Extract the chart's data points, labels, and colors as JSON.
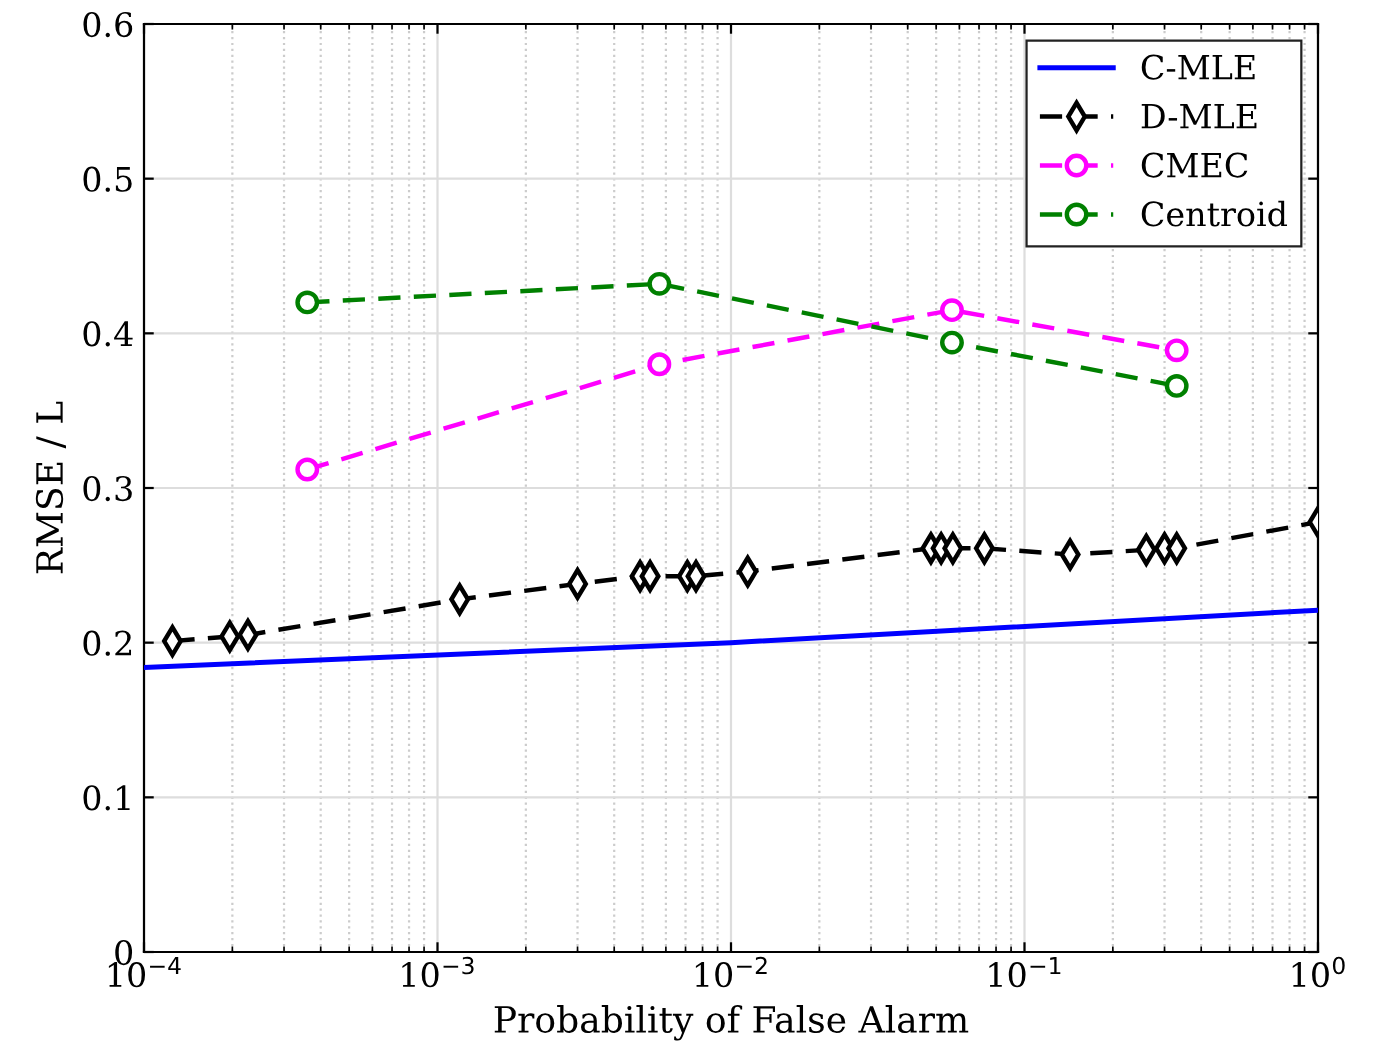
{
  "chart_data": {
    "type": "line",
    "xlabel": "Probability of False Alarm",
    "ylabel": "RMSE / L",
    "log": "x",
    "xlim": [
      0.0001,
      1
    ],
    "xticks": [
      {
        "value": 0.0001,
        "label": "10$^{−4}$"
      },
      {
        "value": 0.001,
        "label": "10$^{−3}$"
      },
      {
        "value": 0.01,
        "label": "10$^{−2}$"
      },
      {
        "value": 0.1,
        "label": "10$^{−1}$"
      },
      {
        "value": 1,
        "label": "10$^{0}$"
      }
    ],
    "ylim": [
      0,
      0.6
    ],
    "yticks": [
      0,
      0.1,
      0.2,
      0.3,
      0.4,
      0.5,
      0.6
    ],
    "grid": true,
    "legend": "top right",
    "series": [
      {
        "name": "C-MLE",
        "color": "#0000ff",
        "line_style": "solid",
        "marker": "none",
        "x": [
          0.0001,
          0.01,
          1
        ],
        "values": [
          0.184,
          0.2,
          0.221
        ]
      },
      {
        "name": "D-MLE",
        "color": "#000000",
        "line_style": "dashed",
        "marker": "diamond",
        "x": [
          0.000125,
          0.000196,
          0.000226,
          0.00119,
          0.003,
          0.0049,
          0.0053,
          0.0071,
          0.0076,
          0.0114,
          0.048,
          0.052,
          0.057,
          0.073,
          0.143,
          0.26,
          0.3,
          0.33,
          1
        ],
        "values": [
          0.201,
          0.204,
          0.205,
          0.228,
          0.238,
          0.243,
          0.243,
          0.243,
          0.243,
          0.246,
          0.261,
          0.261,
          0.261,
          0.261,
          0.257,
          0.26,
          0.261,
          0.261,
          0.278
        ]
      },
      {
        "name": "CMEC",
        "color": "#ff00ff",
        "line_style": "dashed",
        "marker": "circle",
        "x": [
          0.00036,
          0.0057,
          0.0566,
          0.33
        ],
        "values": [
          0.312,
          0.38,
          0.415,
          0.389
        ]
      },
      {
        "name": "Centroid",
        "color": "#008000",
        "line_style": "dashed",
        "marker": "circle",
        "x": [
          0.00036,
          0.0057,
          0.0566,
          0.33
        ],
        "values": [
          0.42,
          0.432,
          0.394,
          0.366
        ]
      }
    ]
  }
}
